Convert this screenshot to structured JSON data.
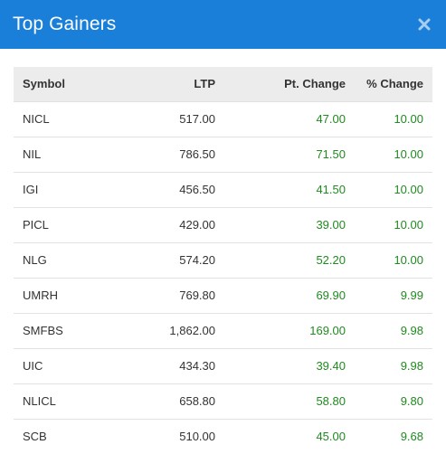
{
  "modal": {
    "title": "Top Gainers",
    "close_glyph": "✕"
  },
  "colors": {
    "header_bg": "#1a7fd9",
    "gain_text": "#1f8a1f",
    "table_header_bg": "#ececec"
  },
  "table": {
    "headers": [
      "Symbol",
      "LTP",
      "Pt. Change",
      "% Change"
    ],
    "rows": [
      {
        "symbol": "NICL",
        "ltp": "517.00",
        "pt_change": "47.00",
        "pct_change": "10.00"
      },
      {
        "symbol": "NIL",
        "ltp": "786.50",
        "pt_change": "71.50",
        "pct_change": "10.00"
      },
      {
        "symbol": "IGI",
        "ltp": "456.50",
        "pt_change": "41.50",
        "pct_change": "10.00"
      },
      {
        "symbol": "PICL",
        "ltp": "429.00",
        "pt_change": "39.00",
        "pct_change": "10.00"
      },
      {
        "symbol": "NLG",
        "ltp": "574.20",
        "pt_change": "52.20",
        "pct_change": "10.00"
      },
      {
        "symbol": "UMRH",
        "ltp": "769.80",
        "pt_change": "69.90",
        "pct_change": "9.99"
      },
      {
        "symbol": "SMFBS",
        "ltp": "1,862.00",
        "pt_change": "169.00",
        "pct_change": "9.98"
      },
      {
        "symbol": "UIC",
        "ltp": "434.30",
        "pt_change": "39.40",
        "pct_change": "9.98"
      },
      {
        "symbol": "NLICL",
        "ltp": "658.80",
        "pt_change": "58.80",
        "pct_change": "9.80"
      },
      {
        "symbol": "SCB",
        "ltp": "510.00",
        "pt_change": "45.00",
        "pct_change": "9.68"
      }
    ]
  }
}
